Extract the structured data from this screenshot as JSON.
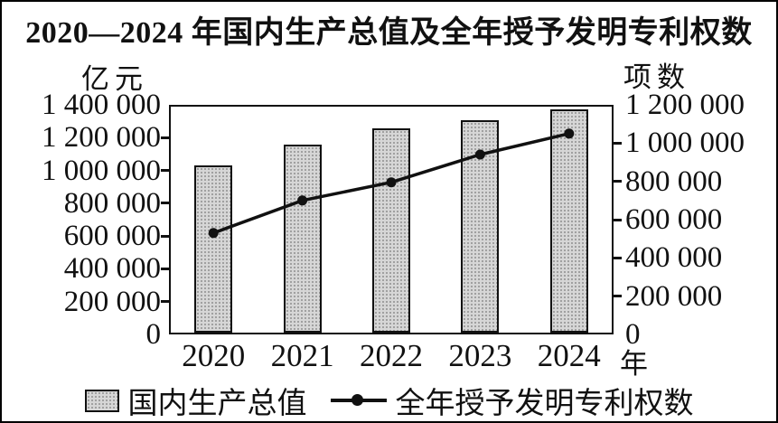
{
  "chart_data": {
    "type": "bar+line",
    "title": "2020—2024 年国内生产总值及全年授予发明专利权数",
    "categories": [
      "2020",
      "2021",
      "2022",
      "2023",
      "2024"
    ],
    "x_axis_suffix": "年",
    "left_axis": {
      "label": "亿元",
      "min": 0,
      "max": 1400000,
      "tick_step": 200000,
      "tick_labels": [
        "0",
        "200 000",
        "400 000",
        "600 000",
        "800 000",
        "1 000 000",
        "1 200 000",
        "1 400 000"
      ]
    },
    "right_axis": {
      "label": "项数",
      "min": 0,
      "max": 1200000,
      "tick_step": 200000,
      "tick_labels": [
        "0",
        "200 000",
        "400 000",
        "600 000",
        "800 000",
        "1 000 000",
        "1 200 000"
      ]
    },
    "series": [
      {
        "name": "国内生产总值",
        "type": "bar",
        "axis": "left",
        "unit": "亿元",
        "values": [
          1030000,
          1160000,
          1255000,
          1305000,
          1370000
        ]
      },
      {
        "name": "全年授予发明专利权数",
        "type": "line",
        "axis": "right",
        "unit": "项数",
        "values": [
          530000,
          700000,
          795000,
          940000,
          1050000
        ]
      }
    ],
    "legend_position": "bottom",
    "grid": false
  },
  "colors": {
    "bar_fill": "#d6d6d6",
    "bar_border": "#111111",
    "line": "#111111",
    "frame": "#111111",
    "background": "#ffffff"
  }
}
